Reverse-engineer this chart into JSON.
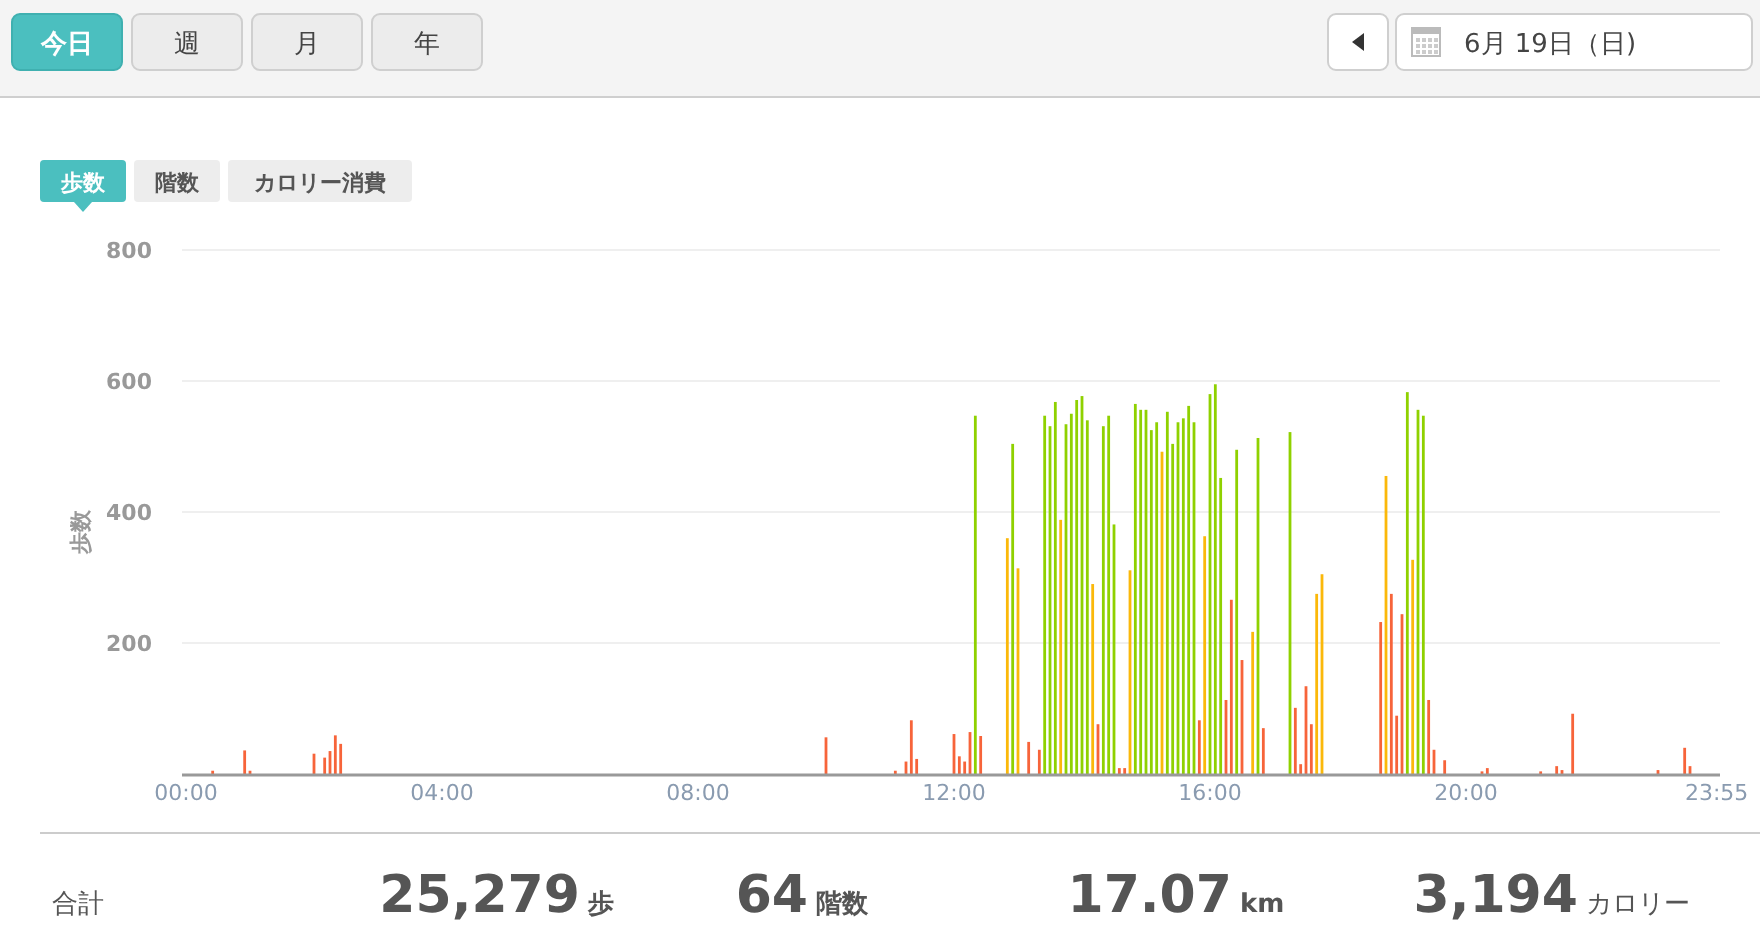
{
  "chart_data": {
    "type": "bar",
    "ylabel": "歩数",
    "annotations": [
      "今日",
      "週",
      "月",
      "年",
      "6月 19日（日)",
      "歩数",
      "階数",
      "カロリー消費",
      "合計",
      "25,279",
      "歩",
      "64",
      "階数",
      "17.07",
      "km",
      "3,194",
      "カロリー"
    ],
    "series": [
      {
        "color": "#f7643a",
        "x": [
          0.4167,
          0.9167,
          1.0,
          2.0,
          2.1667,
          2.25,
          2.3333,
          2.4167,
          10.0,
          11.0833,
          11.25,
          11.3333,
          11.4167,
          12.0,
          12.0833,
          12.1667,
          12.25,
          12.4167,
          13.1667,
          13.3333,
          14.25,
          14.5833,
          14.6667,
          15.8333,
          16.25,
          16.3333,
          16.5,
          16.8333,
          17.3333,
          17.4167,
          17.5,
          17.5833,
          18.6667,
          18.8333,
          18.9167,
          19.0,
          19.4167,
          19.5,
          19.6667,
          20.25,
          20.3333,
          21.1667,
          21.4167,
          21.5,
          21.6667,
          23.0,
          23.4167,
          23.5
        ],
        "values": [
          5,
          36,
          5,
          31,
          25,
          35,
          59,
          46,
          56,
          5,
          19,
          82,
          23,
          61,
          27,
          19,
          64,
          58,
          49,
          37,
          76,
          9,
          9,
          82,
          113,
          266,
          174,
          70,
          101,
          15,
          134,
          76,
          232,
          275,
          89,
          244,
          113,
          37,
          21,
          4,
          9,
          4,
          12,
          6,
          92,
          6,
          40,
          12
        ]
      },
      {
        "color": "#fbb80a",
        "x": [
          12.8333,
          13.0,
          13.6667,
          14.1667,
          14.75,
          15.25,
          15.9167,
          16.6667,
          17.6667,
          17.75,
          18.75,
          19.1667
        ],
        "values": [
          360,
          314,
          388,
          290,
          311,
          492,
          363,
          217,
          275,
          305,
          455,
          327
        ]
      },
      {
        "color": "#8fd100",
        "x": [
          12.3333,
          12.9167,
          13.4167,
          13.5,
          13.5833,
          13.75,
          13.8333,
          13.9167,
          14.0,
          14.0833,
          14.3333,
          14.4167,
          14.5,
          14.8333,
          14.9167,
          15.0,
          15.0833,
          15.1667,
          15.3333,
          15.4167,
          15.5,
          15.5833,
          15.6667,
          15.75,
          16.0,
          16.0833,
          16.1667,
          16.4167,
          16.75,
          17.25,
          19.0833,
          19.25,
          19.3333
        ],
        "values": [
          547,
          504,
          547,
          531,
          568,
          534,
          550,
          571,
          577,
          540,
          531,
          547,
          381,
          565,
          556,
          556,
          525,
          537,
          553,
          504,
          537,
          543,
          562,
          537,
          580,
          595,
          452,
          495,
          513,
          522,
          583,
          556,
          547
        ]
      }
    ],
    "xlim": [
      0,
      24
    ],
    "ylim": [
      0,
      800
    ],
    "xticks": [
      {
        "value": 0,
        "label": "00:00"
      },
      {
        "value": 4,
        "label": "04:00"
      },
      {
        "value": 8,
        "label": "08:00"
      },
      {
        "value": 12,
        "label": "12:00"
      },
      {
        "value": 16,
        "label": "16:00"
      },
      {
        "value": 20,
        "label": "20:00"
      },
      {
        "value": 23.9167,
        "label": "23:55"
      }
    ],
    "yticks": [
      200,
      400,
      600,
      800
    ],
    "grid": "y"
  }
}
